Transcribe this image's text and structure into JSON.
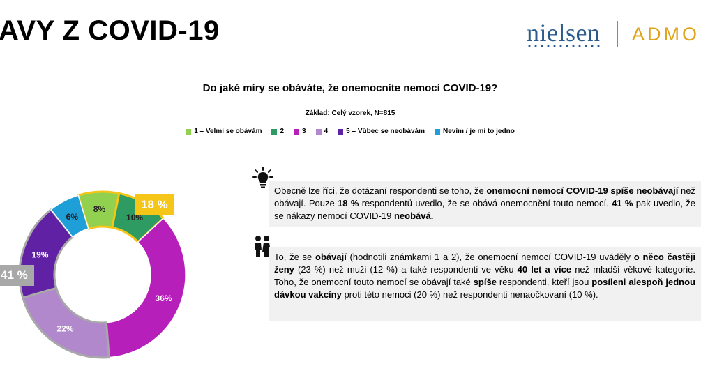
{
  "header": {
    "title": "AVY Z COVID-19",
    "logo_left": "nielsen",
    "logo_right": "ADMO"
  },
  "chart_data": {
    "type": "pie",
    "donut": true,
    "title": "Do jaké míry se obáváte, že onemocníte nemocí COVID-19?",
    "subtitle": "Základ: Celý vzorek, N=815",
    "legend_position": "top",
    "categories": [
      "1 – Velmi se obávám",
      "2",
      "3",
      "4",
      "5 – Vůbec se neobávám",
      "Nevím / je mi to jedno"
    ],
    "values": [
      8,
      10,
      36,
      22,
      19,
      6
    ],
    "labels": [
      "8%",
      "10%",
      "36%",
      "22%",
      "19%",
      "6%"
    ],
    "colors": [
      "#92d050",
      "#2e9b62",
      "#b71fba",
      "#b088cb",
      "#6021a4",
      "#1f9fd8"
    ],
    "annotations": [
      {
        "text": "18 %",
        "group": [
          "1 – Velmi se obávám",
          "2"
        ],
        "color": "#f5c518"
      },
      {
        "text": "41 %",
        "group": [
          "4",
          "5 – Vůbec se neobávám"
        ],
        "color": "#a8a8a8"
      }
    ]
  },
  "insights": {
    "box1": {
      "icon": "lightbulb-icon",
      "parts": [
        {
          "t": "Obecně lze říci, že dotázaní respondenti se toho, že ",
          "b": false
        },
        {
          "t": "onemocní nemocí COVID-19 spíše neobávají",
          "b": true
        },
        {
          "t": " než obávají. Pouze ",
          "b": false
        },
        {
          "t": "18 %",
          "b": true
        },
        {
          "t": " respondentů uvedlo, že se obává onemocnění touto nemocí. ",
          "b": false
        },
        {
          "t": "41 %",
          "b": true
        },
        {
          "t": " pak uvedlo, že se nákazy nemocí COVID-19 ",
          "b": false
        },
        {
          "t": "neobává.",
          "b": true
        }
      ]
    },
    "box2": {
      "icon": "people-icon",
      "parts": [
        {
          "t": "To, že se ",
          "b": false
        },
        {
          "t": "obávají",
          "b": true
        },
        {
          "t": " (hodnotili známkami 1 a 2), že onemocní nemocí COVID-19 uváděly ",
          "b": false
        },
        {
          "t": "o něco častěji ženy",
          "b": true
        },
        {
          "t": " (23 %) než muži (12 %) a také respondenti ve věku ",
          "b": false
        },
        {
          "t": "40 let a více",
          "b": true
        },
        {
          "t": " než mladší věkové kategorie. Toho, že onemocní touto nemocí se obávají také ",
          "b": false
        },
        {
          "t": "spíše",
          "b": true
        },
        {
          "t": " respondenti, kteří jsou ",
          "b": false
        },
        {
          "t": "posíleni alespoň jednou dávkou vakcíny",
          "b": true
        },
        {
          "t": " proti této nemoci (20 %) než respondenti nenaočkovaní (10 %).",
          "b": false
        }
      ]
    }
  }
}
